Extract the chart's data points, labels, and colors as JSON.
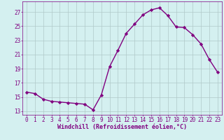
{
  "x": [
    0,
    1,
    2,
    3,
    4,
    5,
    6,
    7,
    8,
    9,
    10,
    11,
    12,
    13,
    14,
    15,
    16,
    17,
    18,
    19,
    20,
    21,
    22,
    23
  ],
  "y": [
    15.7,
    15.5,
    14.7,
    14.4,
    14.3,
    14.2,
    14.1,
    14.0,
    13.2,
    15.3,
    19.3,
    21.6,
    24.0,
    25.3,
    26.6,
    27.3,
    27.6,
    26.5,
    24.9,
    24.8,
    23.8,
    22.5,
    20.3,
    18.5
  ],
  "line_color": "#800080",
  "marker": "D",
  "marker_size": 2.2,
  "bg_color": "#d4f0f0",
  "grid_color": "#b0c8c8",
  "xlabel": "Windchill (Refroidissement éolien,°C)",
  "xlabel_color": "#800080",
  "tick_color": "#800080",
  "ylim": [
    12.5,
    28.5
  ],
  "xlim": [
    -0.5,
    23.5
  ],
  "yticks": [
    13,
    15,
    17,
    19,
    21,
    23,
    25,
    27
  ],
  "xticks": [
    0,
    1,
    2,
    3,
    4,
    5,
    6,
    7,
    8,
    9,
    10,
    11,
    12,
    13,
    14,
    15,
    16,
    17,
    18,
    19,
    20,
    21,
    22,
    23
  ],
  "linewidth": 1.0,
  "tick_fontsize": 5.5,
  "xlabel_fontsize": 6.0,
  "xlabel_fontweight": "bold"
}
